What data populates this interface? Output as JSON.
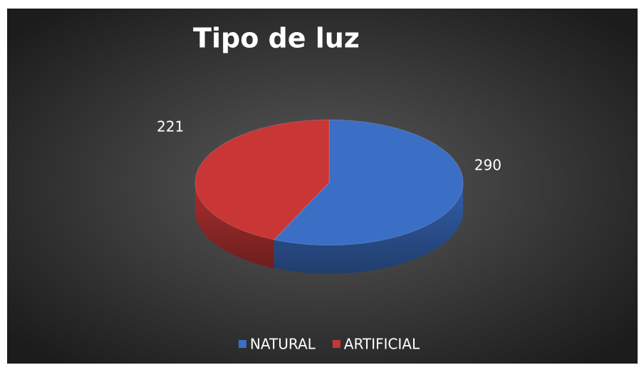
{
  "chart_data": {
    "type": "pie",
    "title": "Tipo de luz",
    "categories": [
      "NATURAL",
      "ARTIFICIAL"
    ],
    "values": [
      290,
      221
    ],
    "colors": [
      "#3b6fc6",
      "#c83636"
    ],
    "legend": "bottom"
  }
}
